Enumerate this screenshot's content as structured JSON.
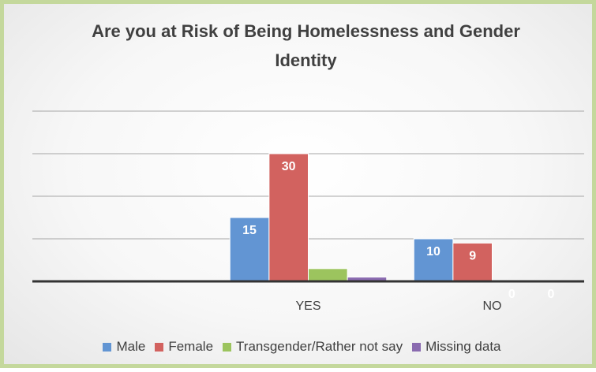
{
  "chart_data": {
    "type": "bar",
    "title": "Are you at Risk of Being Homelessness and Gender Identity",
    "categories": [
      null,
      "YES",
      "NO"
    ],
    "series": [
      {
        "name": "Male",
        "color": "#6295d3",
        "values": [
          null,
          15,
          10
        ],
        "value_labels": [
          null,
          "15",
          "10"
        ]
      },
      {
        "name": "Female",
        "color": "#d2625f",
        "values": [
          null,
          30,
          9
        ],
        "value_labels": [
          null,
          "30",
          "9"
        ]
      },
      {
        "name": "Transgender/Rather not say",
        "color": "#9cc45e",
        "values": [
          null,
          3,
          0
        ],
        "value_labels": [
          null,
          null,
          "0"
        ]
      },
      {
        "name": "Missing data",
        "color": "#8a6bb0",
        "values": [
          null,
          1,
          0
        ],
        "value_labels": [
          null,
          null,
          "0"
        ]
      }
    ],
    "ylim": [
      0,
      40
    ],
    "yticks": [
      0,
      10,
      20,
      30,
      40
    ],
    "grid": true,
    "show_ytick_labels": false,
    "legend": "bottom"
  }
}
